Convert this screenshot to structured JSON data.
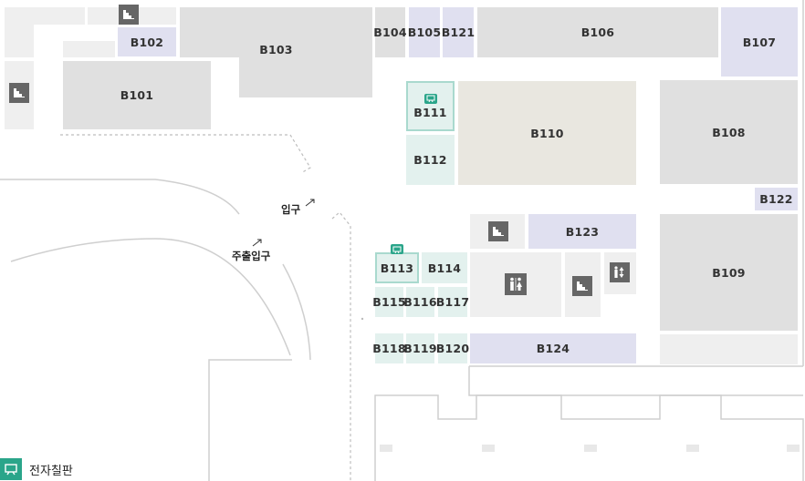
{
  "rooms": {
    "b101": "B101",
    "b102": "B102",
    "b103": "B103",
    "b104": "B104",
    "b105": "B105",
    "b106": "B106",
    "b107": "B107",
    "b108": "B108",
    "b109": "B109",
    "b110": "B110",
    "b111": "B111",
    "b112": "B112",
    "b113": "B113",
    "b114": "B114",
    "b115": "B115",
    "b116": "B116",
    "b117": "B117",
    "b118": "B118",
    "b119": "B119",
    "b120": "B120",
    "b121": "B121",
    "b122": "B122",
    "b123": "B123",
    "b124": "B124"
  },
  "labels": {
    "entrance": "입구",
    "main_entrance": "주출입구"
  },
  "legend": {
    "electronic_board": "전자칠판"
  },
  "icons": {
    "stairs": "stairs-icon",
    "restroom": "restroom-icon",
    "elevator": "elevator-icon",
    "board": "electronic-board-icon"
  },
  "colors": {
    "room_gray": "#e0e0e0",
    "room_light": "#efefef",
    "room_purple": "#e0e0f0",
    "room_teal": "#e3f1ee",
    "room_beige": "#e9e7e0",
    "accent_teal": "#2aa58a",
    "icon_gray": "#666666"
  }
}
